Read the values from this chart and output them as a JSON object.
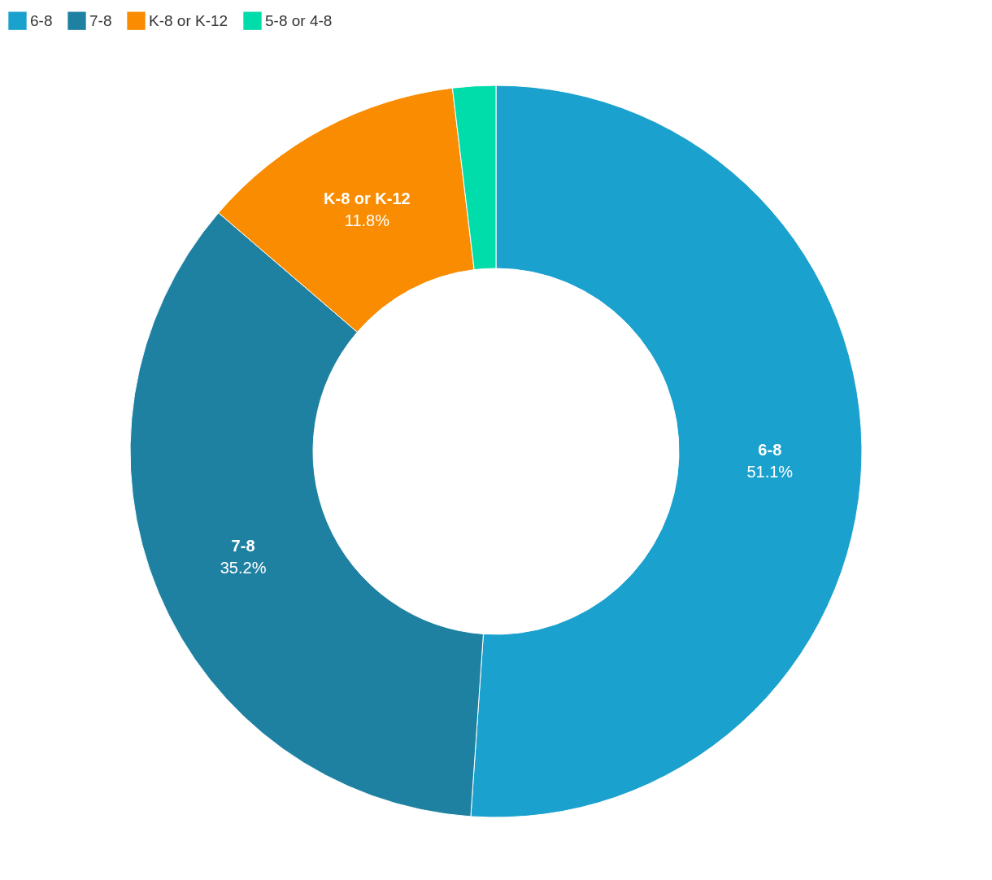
{
  "chart_data": {
    "type": "donut",
    "categories": [
      "6-8",
      "7-8",
      "K-8 or K-12",
      "5-8 or 4-8"
    ],
    "values": [
      51.1,
      35.2,
      11.8,
      1.9
    ],
    "colors": [
      "#1ba1ce",
      "#1f81a1",
      "#f98c00",
      "#00dcaa"
    ],
    "value_labels": [
      "51.1%",
      "35.2%",
      "11.8%",
      null
    ],
    "legend": "top left"
  }
}
